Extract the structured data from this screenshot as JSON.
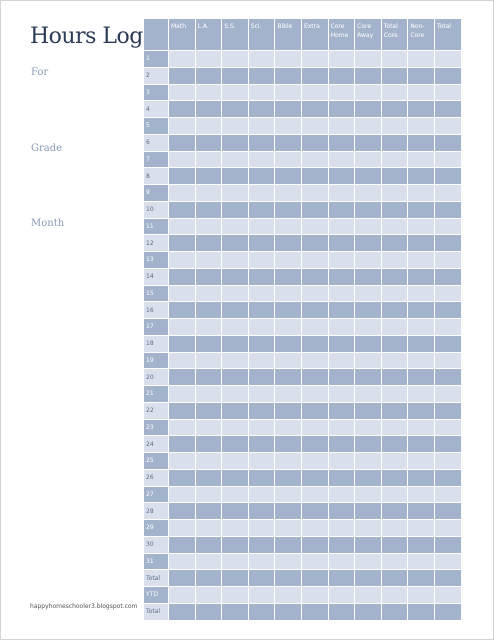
{
  "title": "Hours Log",
  "fields": {
    "for_label": "For",
    "grade_label": "Grade",
    "month_label": "Month"
  },
  "footer": {
    "url": "happyhomeschooler3.blogspot.com"
  },
  "table": {
    "headers": [
      "",
      "Math",
      "L.A.",
      "S.S.",
      "Sci.",
      "Bible",
      "Extra",
      "Core Home",
      "Core Away",
      "Total Core",
      "Non-Core",
      "Total"
    ],
    "rows": [
      "1",
      "2",
      "3",
      "4",
      "5",
      "6",
      "7",
      "8",
      "9",
      "10",
      "11",
      "12",
      "13",
      "14",
      "15",
      "16",
      "17",
      "18",
      "19",
      "20",
      "21",
      "22",
      "23",
      "24",
      "25",
      "26",
      "27",
      "28",
      "29",
      "30",
      "31",
      "Total",
      "YTD",
      "Total"
    ]
  },
  "colors": {
    "dark_cell": "#a3b3cc",
    "light_cell": "#d9e0eb",
    "title": "#2b3a55",
    "label": "#8a9bb5"
  }
}
